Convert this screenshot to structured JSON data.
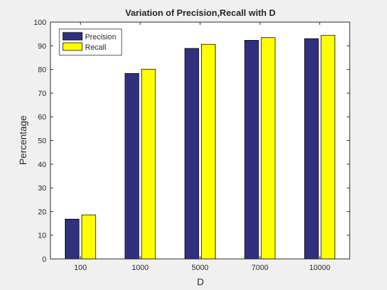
{
  "chart_data": {
    "type": "bar",
    "title": "Variation of Precision,Recall with D",
    "xlabel": "D",
    "ylabel": "Percentage",
    "categories": [
      "100",
      "1000",
      "5000",
      "7000",
      "10000"
    ],
    "ylim": [
      0,
      100
    ],
    "yticks": [
      0,
      10,
      20,
      30,
      40,
      50,
      60,
      70,
      80,
      90,
      100
    ],
    "grid": false,
    "legend_position": "top-left",
    "series": [
      {
        "name": "Precision",
        "color": "#31307f",
        "values": [
          16.8,
          78.3,
          88.9,
          92.3,
          93.0
        ]
      },
      {
        "name": "Recall",
        "color": "#ffff00",
        "values": [
          18.6,
          80.1,
          90.6,
          93.4,
          94.4
        ]
      }
    ]
  }
}
